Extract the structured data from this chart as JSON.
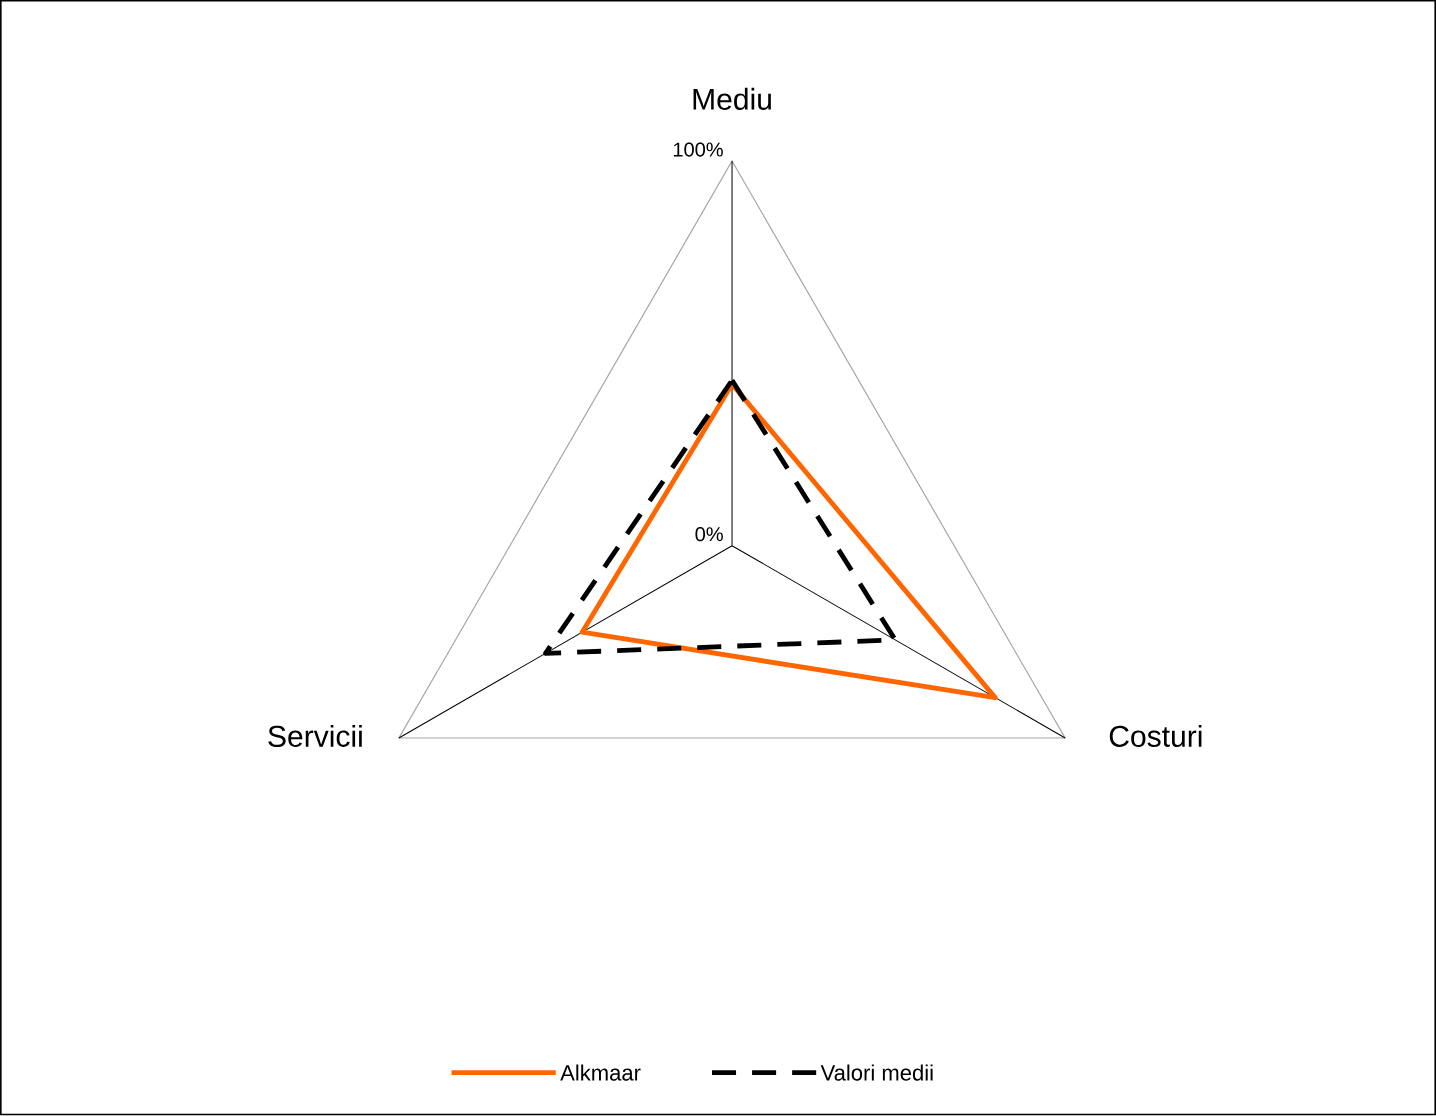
{
  "chart_data": {
    "type": "radar",
    "categories": [
      "Mediu",
      "Costuri",
      "Servicii"
    ],
    "series": [
      {
        "name": "Alkmaar",
        "color": "#ff6600",
        "line_style": "solid",
        "values": [
          42,
          79,
          45
        ]
      },
      {
        "name": "Valori medii",
        "color": "#000000",
        "line_style": "dashed",
        "values": [
          43,
          49,
          56
        ]
      }
    ],
    "ylim": [
      0,
      100
    ],
    "yticks": [
      {
        "value": 0,
        "label": "0%"
      },
      {
        "value": 100,
        "label": "100%"
      }
    ],
    "grid": true,
    "legend": "bottom",
    "marker": "none"
  }
}
